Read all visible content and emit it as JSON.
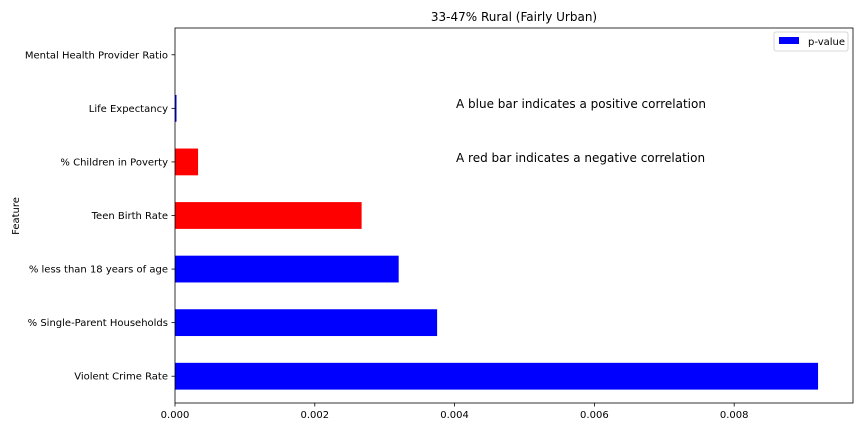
{
  "chart_data": {
    "type": "bar",
    "orientation": "horizontal",
    "title": "33-47% Rural (Fairly Urban)",
    "xlabel": "",
    "ylabel": "Feature",
    "xlim": [
      0,
      0.0097
    ],
    "x_ticks": [
      "0.000",
      "0.002",
      "0.004",
      "0.006",
      "0.008"
    ],
    "x_tick_values": [
      0,
      0.002,
      0.004,
      0.006,
      0.008
    ],
    "categories": [
      "Violent Crime Rate",
      "% Single-Parent Households",
      "% less than 18 years of age",
      "Teen Birth Rate",
      "% Children in Poverty",
      "Life Expectancy",
      "Mental Health Provider Ratio"
    ],
    "values": [
      0.0092,
      0.00375,
      0.0032,
      0.00267,
      0.00033,
      2e-05,
      0.0
    ],
    "bar_colors": [
      "#0000ff",
      "#0000ff",
      "#0000ff",
      "#ff0000",
      "#ff0000",
      "#0000ff",
      "#0000ff"
    ],
    "legend": {
      "labels": [
        "p-value"
      ],
      "color": "#0000ff",
      "position": "top-right"
    },
    "annotations": [
      "A blue bar indicates a positive correlation",
      "A red bar indicates a negative correlation"
    ],
    "grid": false
  }
}
